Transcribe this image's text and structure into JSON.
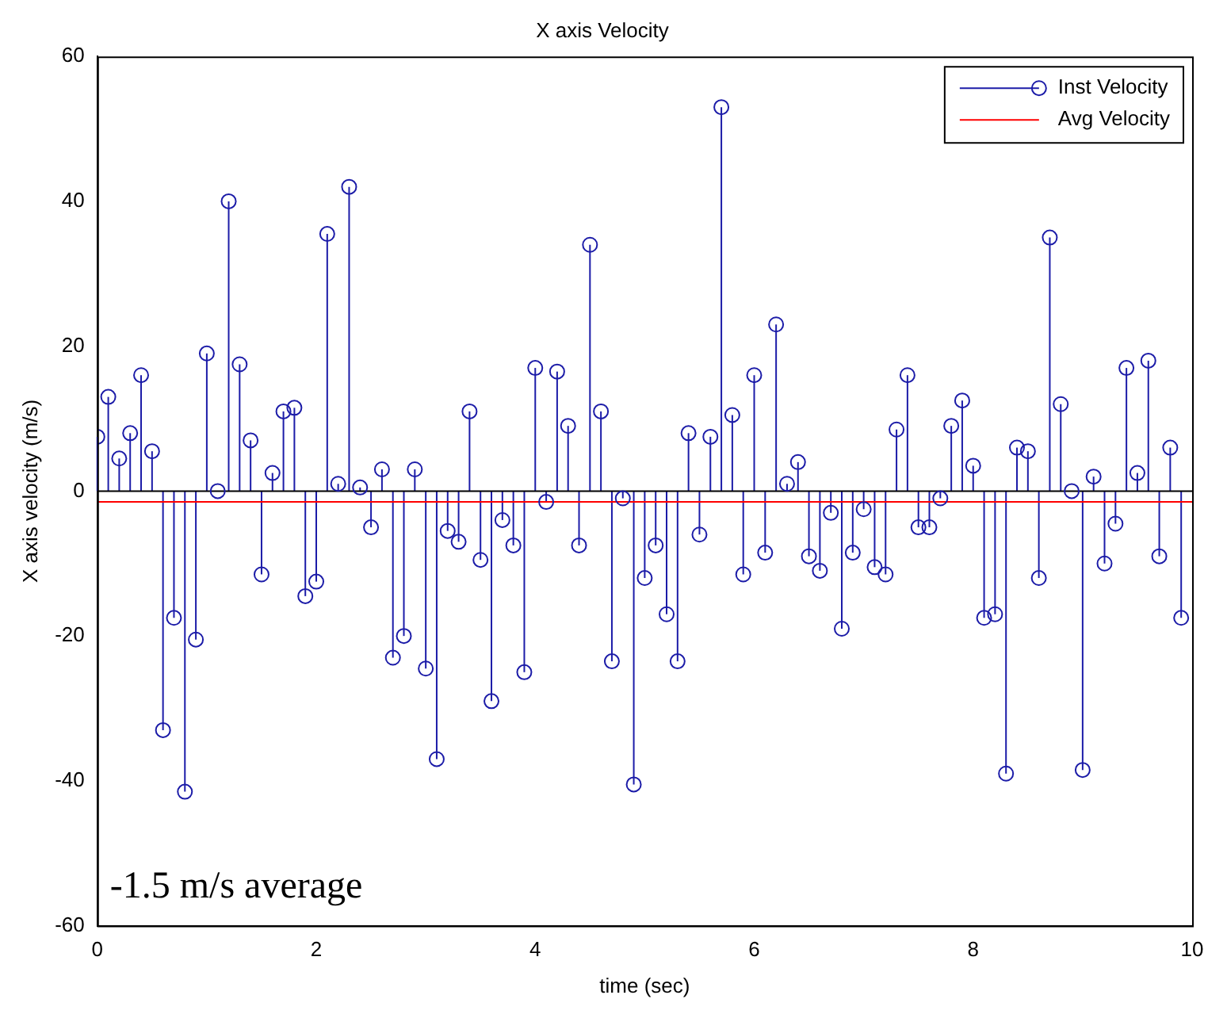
{
  "chart_data": {
    "type": "lollipop",
    "title": "X axis Velocity",
    "xlabel": "time (sec)",
    "ylabel": "X axis velocity (m/s)",
    "xlim": [
      0,
      10
    ],
    "xticks": [
      0,
      2,
      4,
      6,
      8,
      10
    ],
    "ylim": [
      -60,
      60
    ],
    "yticks": [
      -60,
      -40,
      -20,
      0,
      20,
      40,
      60
    ],
    "grid": false,
    "legend": "top right",
    "marker": "circle",
    "annotations": [
      "-1.5 m/s average"
    ],
    "ref_lines": [
      {
        "axis": "y",
        "value": 0,
        "color": "#000000"
      }
    ],
    "series": [
      {
        "name": "Inst Velocity",
        "color": "#1c1ca8",
        "x": [
          0,
          0.1,
          0.2,
          0.3,
          0.4,
          0.5,
          0.6,
          0.7,
          0.8,
          0.9,
          1,
          1.1,
          1.2,
          1.3,
          1.4,
          1.5,
          1.6,
          1.7,
          1.8,
          1.9,
          2,
          2.1,
          2.2,
          2.3,
          2.4,
          2.5,
          2.6,
          2.7,
          2.8,
          2.9,
          3,
          3.1,
          3.2,
          3.3,
          3.4,
          3.5,
          3.6,
          3.7,
          3.8,
          3.9,
          4,
          4.1,
          4.2,
          4.3,
          4.4,
          4.5,
          4.6,
          4.7,
          4.8,
          4.9,
          5,
          5.1,
          5.2,
          5.3,
          5.4,
          5.5,
          5.6,
          5.7,
          5.8,
          5.9,
          6,
          6.1,
          6.2,
          6.3,
          6.4,
          6.5,
          6.6,
          6.7,
          6.8,
          6.9,
          7,
          7.1,
          7.2,
          7.3,
          7.4,
          7.5,
          7.6,
          7.7,
          7.8,
          7.9,
          8,
          8.1,
          8.2,
          8.3,
          8.4,
          8.5,
          8.6,
          8.7,
          8.8,
          8.9,
          9,
          9.1,
          9.2,
          9.3,
          9.4,
          9.5,
          9.6,
          9.7,
          9.8,
          9.9
        ],
        "values": [
          7.5,
          13,
          4.5,
          8,
          16,
          5.5,
          -33,
          -17.5,
          -41.5,
          -20.5,
          19,
          0,
          40,
          17.5,
          7,
          -11.5,
          2.5,
          11,
          11.5,
          -14.5,
          -12.5,
          35.5,
          1,
          42,
          0.5,
          -5,
          3,
          -23,
          -20,
          3,
          -24.5,
          -37,
          -5.5,
          -7,
          11,
          -9.5,
          -29,
          -4,
          -7.5,
          -25,
          17,
          -1.5,
          16.5,
          9,
          -7.5,
          34,
          11,
          -23.5,
          -1,
          -40.5,
          -12,
          -7.5,
          -17,
          -23.5,
          8,
          -6,
          7.5,
          53,
          10.5,
          -11.5,
          16,
          -8.5,
          23,
          1,
          4,
          -9,
          -11,
          -3,
          -19,
          -8.5,
          -2.5,
          -10.5,
          -11.5,
          8.5,
          16,
          -5,
          -5,
          -1,
          9,
          12.5,
          3.5,
          -17.5,
          -17,
          -39,
          6,
          5.5,
          -12,
          35,
          12,
          0,
          -38.5,
          2,
          -10,
          -4.5,
          17,
          2.5,
          18,
          -9,
          6,
          -17.5
        ]
      },
      {
        "name": "Avg Velocity",
        "type": "line",
        "color": "#ff0000",
        "marker": "none",
        "x": [
          0,
          10
        ],
        "values": [
          -1.5,
          -1.5
        ]
      }
    ]
  }
}
